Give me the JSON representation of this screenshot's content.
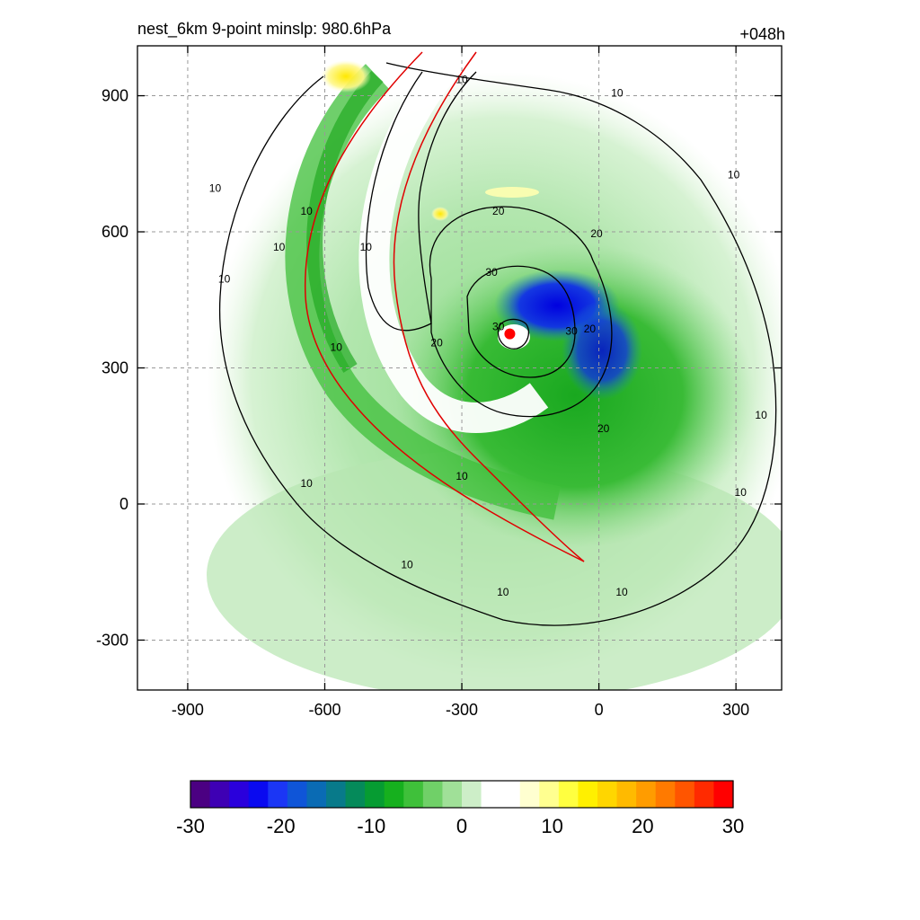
{
  "header": {
    "title_left": "nest_6km  9-point minslp: 980.6hPa",
    "title_right": "+048h"
  },
  "chart_data": {
    "type": "heatmap",
    "title": "nest_6km  9-point minslp: 980.6hPa",
    "forecast_hour": "+048h",
    "xlim": [
      -1010,
      400
    ],
    "ylim": [
      -410,
      1010
    ],
    "x_ticks": [
      -900,
      -600,
      -300,
      0,
      300
    ],
    "y_ticks": [
      -300,
      0,
      300,
      600,
      900
    ],
    "grid": true,
    "storm_center": {
      "x": -195,
      "y": 375
    },
    "colorbar": {
      "min": -30,
      "max": 30,
      "ticks": [
        -30,
        -20,
        -10,
        0,
        10,
        20,
        30
      ],
      "colors": [
        "#4b0082",
        "#3e00b4",
        "#2a00dc",
        "#0a0af0",
        "#1b36f5",
        "#0f55d8",
        "#0a6bb4",
        "#087a8a",
        "#058a5a",
        "#069c32",
        "#16b01e",
        "#3fc03a",
        "#70d068",
        "#a0e098",
        "#cdeec8",
        "#ffffff",
        "#ffffff",
        "#ffffd0",
        "#ffff90",
        "#ffff40",
        "#fff000",
        "#ffd600",
        "#ffba00",
        "#ff9c00",
        "#ff7a00",
        "#ff5500",
        "#ff2a00",
        "#ff0000"
      ]
    },
    "contours": {
      "levels": [
        10,
        20,
        30
      ],
      "label_positions": [
        {
          "text": "10",
          "x": -840,
          "y": 690
        },
        {
          "text": "10",
          "x": -820,
          "y": 490
        },
        {
          "text": "10",
          "x": -700,
          "y": 560
        },
        {
          "text": "10",
          "x": -640,
          "y": 640
        },
        {
          "text": "10",
          "x": -575,
          "y": 340
        },
        {
          "text": "10",
          "x": -510,
          "y": 560
        },
        {
          "text": "10",
          "x": -300,
          "y": 930
        },
        {
          "text": "10",
          "x": 40,
          "y": 900
        },
        {
          "text": "10",
          "x": 295,
          "y": 720
        },
        {
          "text": "10",
          "x": 355,
          "y": 190
        },
        {
          "text": "10",
          "x": 310,
          "y": 20
        },
        {
          "text": "10",
          "x": -640,
          "y": 40
        },
        {
          "text": "10",
          "x": -420,
          "y": -140
        },
        {
          "text": "10",
          "x": -300,
          "y": 55
        },
        {
          "text": "10",
          "x": -210,
          "y": -200
        },
        {
          "text": "10",
          "x": 50,
          "y": -200
        },
        {
          "text": "20",
          "x": -220,
          "y": 640
        },
        {
          "text": "20",
          "x": -5,
          "y": 590
        },
        {
          "text": "20",
          "x": -355,
          "y": 350
        },
        {
          "text": "20",
          "x": -20,
          "y": 380
        },
        {
          "text": "20",
          "x": 10,
          "y": 160
        },
        {
          "text": "30",
          "x": -235,
          "y": 505
        },
        {
          "text": "30",
          "x": -60,
          "y": 375
        },
        {
          "text": "30",
          "x": -220,
          "y": 385
        }
      ]
    }
  }
}
